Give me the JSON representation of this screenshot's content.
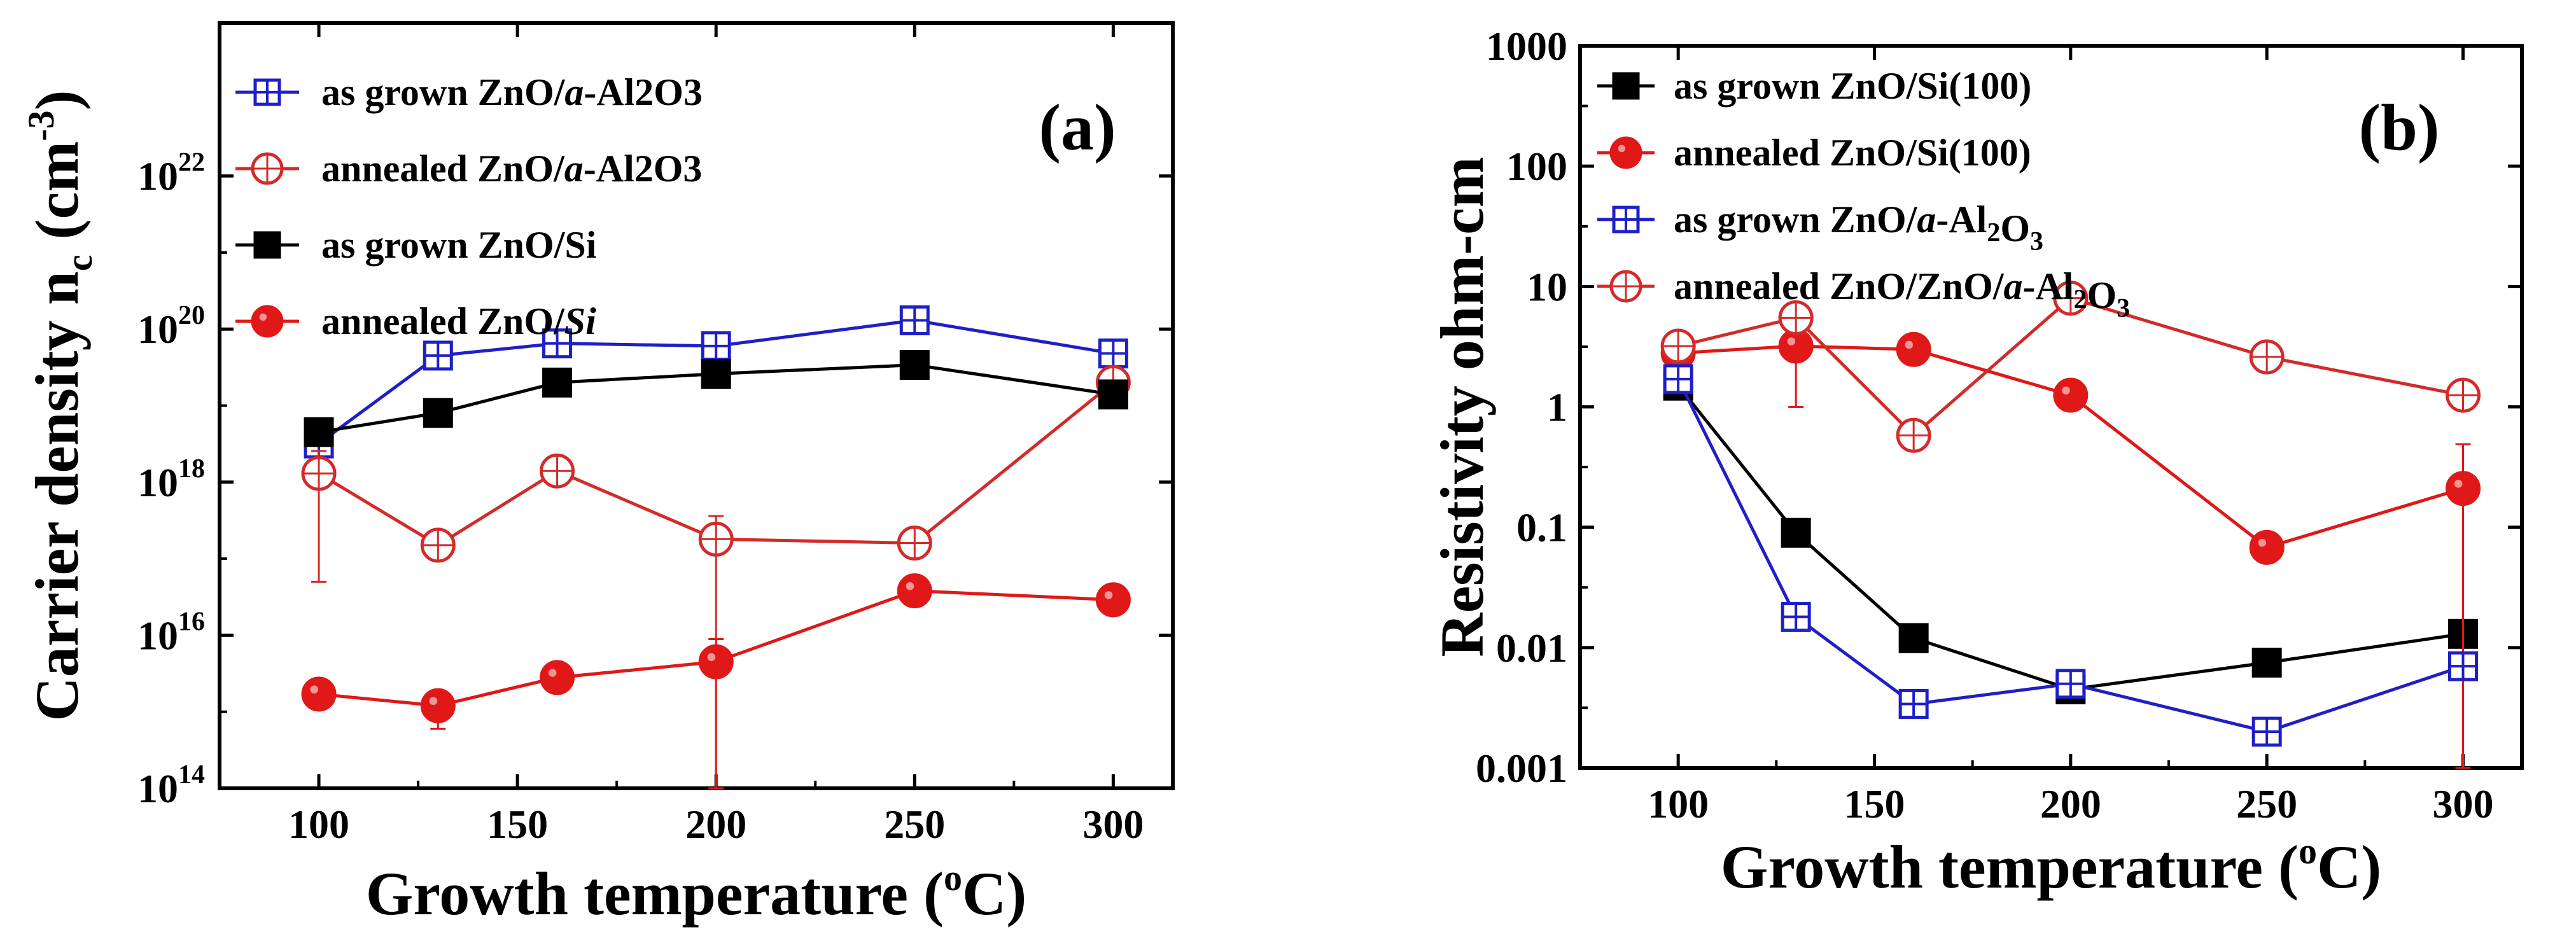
{
  "chart_data": [
    {
      "type": "line",
      "panel_label": "(a)",
      "xlabel": "Growth temperature (",
      "xlabel_sup": "o",
      "xlabel_tail": "C)",
      "ylabel": "Carrier density n",
      "ylabel_sub": "c",
      "ylabel_unit": " (cm",
      "ylabel_sup": "-3",
      "ylabel_tail": ")",
      "xlim": [
        75,
        315
      ],
      "ylim": [
        100000000000000.0,
        1e+24
      ],
      "yscale": "log",
      "xticks": [
        100,
        150,
        200,
        250,
        300
      ],
      "yticks": [
        {
          "value": 100000000000000.0,
          "base": "10",
          "exp": "14"
        },
        {
          "value": 1e+16,
          "base": "10",
          "exp": "16"
        },
        {
          "value": 1e+18,
          "base": "10",
          "exp": "18"
        },
        {
          "value": 1e+20,
          "base": "10",
          "exp": "20"
        },
        {
          "value": 1e+22,
          "base": "10",
          "exp": "22"
        }
      ],
      "legend_position": "top-left",
      "series": [
        {
          "name": "as grown ZnO/a-Al2O3",
          "legend_parts": [
            {
              "t": "as grown ZnO/"
            },
            {
              "t": "a",
              "i": true
            },
            {
              "t": "-Al2O3"
            }
          ],
          "color": "#1f1fc8",
          "marker": "square-open",
          "x": [
            100,
            130,
            160,
            200,
            250,
            300
          ],
          "y": [
            3.2e+18,
            4.5e+19,
            6.5e+19,
            6e+19,
            1.3e+20,
            4.8e+19
          ],
          "err": [
            1.2e+18,
            0,
            0,
            0,
            0,
            0
          ]
        },
        {
          "name": "annealed ZnO/a-Al2O3",
          "legend_parts": [
            {
              "t": "annealed ZnO/"
            },
            {
              "t": "a",
              "i": true
            },
            {
              "t": "-Al2O3"
            }
          ],
          "color": "#d42a2a",
          "marker": "circle-open",
          "x": [
            100,
            130,
            160,
            200,
            250,
            300
          ],
          "y": [
            1.3e+18,
            1.5e+17,
            1.4e+18,
            1.8e+17,
            1.6e+17,
            2e+19
          ],
          "err": [
            1.25e+18,
            0,
            0,
            1.8e+17,
            0,
            0
          ]
        },
        {
          "name": "as grown ZnO/Si",
          "legend_parts": [
            {
              "t": "as grown ZnO/Si"
            }
          ],
          "color": "#000000",
          "marker": "square-filled",
          "x": [
            100,
            130,
            160,
            200,
            250,
            300
          ],
          "y": [
            4.5e+18,
            8e+18,
            2e+19,
            2.6e+19,
            3.4e+19,
            1.4e+19
          ],
          "err": [
            0,
            0,
            0,
            0,
            0,
            0
          ]
        },
        {
          "name": "annealed ZnO/Si",
          "legend_parts": [
            {
              "t": "annealed ZnO/"
            },
            {
              "t": "Si",
              "i": true
            }
          ],
          "color": "#e01818",
          "marker": "circle-filled",
          "x": [
            100,
            130,
            160,
            200,
            250,
            300
          ],
          "y": [
            1700000000000000.0,
            1200000000000000.0,
            2800000000000000.0,
            4500000000000000.0,
            3.8e+16,
            2.9e+16
          ],
          "err": [
            0,
            600000000000000.0,
            0,
            4400000000000000.0,
            0,
            0
          ]
        }
      ]
    },
    {
      "type": "line",
      "panel_label": "(b)",
      "xlabel": "Growth temperature (",
      "xlabel_sup": "o",
      "xlabel_tail": "C)",
      "ylabel": "Resistivity  ohm-cm",
      "xlim": [
        75,
        315
      ],
      "ylim": [
        0.001,
        1000
      ],
      "yscale": "log",
      "xticks": [
        100,
        150,
        200,
        250,
        300
      ],
      "yticks": [
        {
          "value": 0.001,
          "label": "0.001"
        },
        {
          "value": 0.01,
          "label": "0.01"
        },
        {
          "value": 0.1,
          "label": "0.1"
        },
        {
          "value": 1,
          "label": "1"
        },
        {
          "value": 10,
          "label": "10"
        },
        {
          "value": 100,
          "label": "100"
        },
        {
          "value": 1000,
          "label": "1000"
        }
      ],
      "legend_position": "top-left",
      "series": [
        {
          "name": "as grown ZnO/Si(100)",
          "legend_parts": [
            {
              "t": "as grown ZnO/Si(100)"
            }
          ],
          "color": "#000000",
          "marker": "square-filled",
          "x": [
            100,
            130,
            160,
            200,
            250,
            300
          ],
          "y": [
            1.5,
            0.09,
            0.012,
            0.0045,
            0.0075,
            0.013
          ],
          "err": [
            0,
            0,
            0,
            0,
            0,
            0
          ]
        },
        {
          "name": "annealed ZnO/Si(100)",
          "legend_parts": [
            {
              "t": "annealed ZnO/Si(100)"
            }
          ],
          "color": "#e01818",
          "marker": "circle-filled",
          "x": [
            100,
            130,
            160,
            200,
            250,
            300
          ],
          "y": [
            2.8,
            3.2,
            3.0,
            1.25,
            0.068,
            0.21
          ],
          "err": [
            0,
            2.2,
            0,
            0,
            0,
            0.28
          ]
        },
        {
          "name": "as grown ZnO/a-Al2O3",
          "legend_parts": [
            {
              "t": "as grown ZnO/"
            },
            {
              "t": "a",
              "i": true
            },
            {
              "t": "-Al"
            },
            {
              "t": "2",
              "s": true
            },
            {
              "t": "O"
            },
            {
              "t": "3",
              "s": true
            }
          ],
          "color": "#1f1fc8",
          "marker": "square-open",
          "x": [
            100,
            130,
            160,
            200,
            250,
            300
          ],
          "y": [
            1.7,
            0.018,
            0.0034,
            0.005,
            0.002,
            0.007
          ],
          "err": [
            0,
            0,
            0,
            0,
            0,
            0
          ]
        },
        {
          "name": "annealed ZnO/ZnO/a-Al2O3",
          "legend_parts": [
            {
              "t": "annealed ZnO/ZnO/"
            },
            {
              "t": "a",
              "i": true
            },
            {
              "t": "-Al"
            },
            {
              "t": "2",
              "s": true
            },
            {
              "t": "O"
            },
            {
              "t": "3",
              "s": true
            }
          ],
          "color": "#d42a2a",
          "marker": "circle-open",
          "x": [
            100,
            130,
            160,
            200,
            250,
            300
          ],
          "y": [
            3.2,
            5.5,
            0.58,
            8.0,
            2.6,
            1.25
          ],
          "err": [
            0,
            0,
            0,
            0,
            0,
            0
          ]
        }
      ]
    }
  ]
}
